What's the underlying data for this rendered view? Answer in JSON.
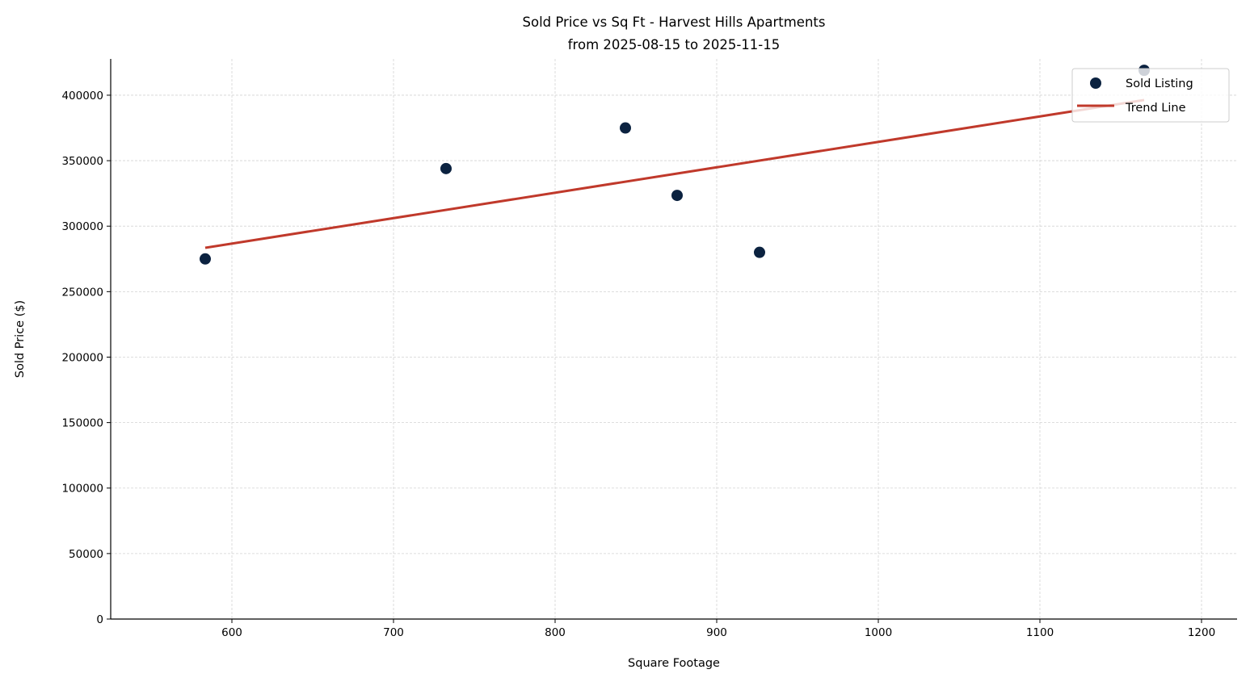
{
  "chart_data": {
    "type": "scatter",
    "title": "Sold Price vs Sq Ft - Harvest Hills Apartments",
    "subtitle": "from 2025-08-15 to 2025-11-15",
    "xlabel": "Square Footage",
    "ylabel": "Sold Price ($)",
    "xlim": [
      525,
      1222
    ],
    "ylim": [
      0,
      427700
    ],
    "xticks": [
      600,
      700,
      800,
      900,
      1000,
      1100,
      1200
    ],
    "yticks": [
      0,
      50000,
      100000,
      150000,
      200000,
      250000,
      300000,
      350000,
      400000
    ],
    "grid": true,
    "legend_placement": "top-right",
    "series": [
      {
        "name": "Sold Listing",
        "type": "scatter",
        "color": "#0b2240",
        "points": [
          {
            "x": 583.5,
            "y": 275000
          },
          {
            "x": 732.5,
            "y": 344000
          },
          {
            "x": 843.5,
            "y": 375000
          },
          {
            "x": 875.5,
            "y": 323500
          },
          {
            "x": 926.5,
            "y": 280000
          },
          {
            "x": 1164.5,
            "y": 419000
          }
        ]
      },
      {
        "name": "Trend Line",
        "type": "line",
        "color": "#c0392b",
        "points": [
          {
            "x": 583.5,
            "y": 283500
          },
          {
            "x": 1164.5,
            "y": 396300
          }
        ]
      }
    ]
  }
}
